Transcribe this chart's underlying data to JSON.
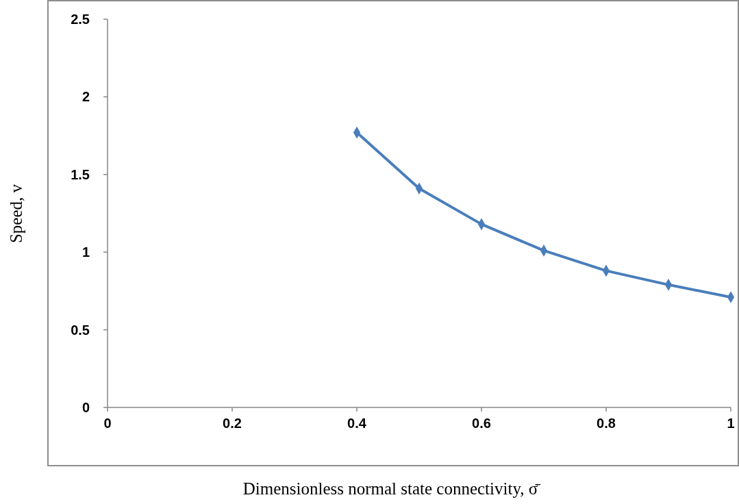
{
  "chart_data": {
    "type": "line",
    "xlabel": "Dimensionless normal state connectivity, σ̄",
    "ylabel": "Speed, v",
    "x": [
      0.4,
      0.5,
      0.6,
      0.7,
      0.8,
      0.9,
      1
    ],
    "series": [
      {
        "color": "#4a7ebb",
        "values": [
          1.77,
          1.41,
          1.18,
          1.01,
          0.88,
          0.79,
          0.71
        ]
      }
    ],
    "xlim": [
      0,
      1
    ],
    "xticks": [
      0,
      0.2,
      0.4,
      0.6,
      0.8,
      1
    ],
    "ylim": [
      0,
      2.5
    ],
    "yticks": [
      0,
      0.5,
      1,
      1.5,
      2,
      2.5
    ],
    "grid": false,
    "marker": "diamond",
    "line_style": "solid"
  }
}
